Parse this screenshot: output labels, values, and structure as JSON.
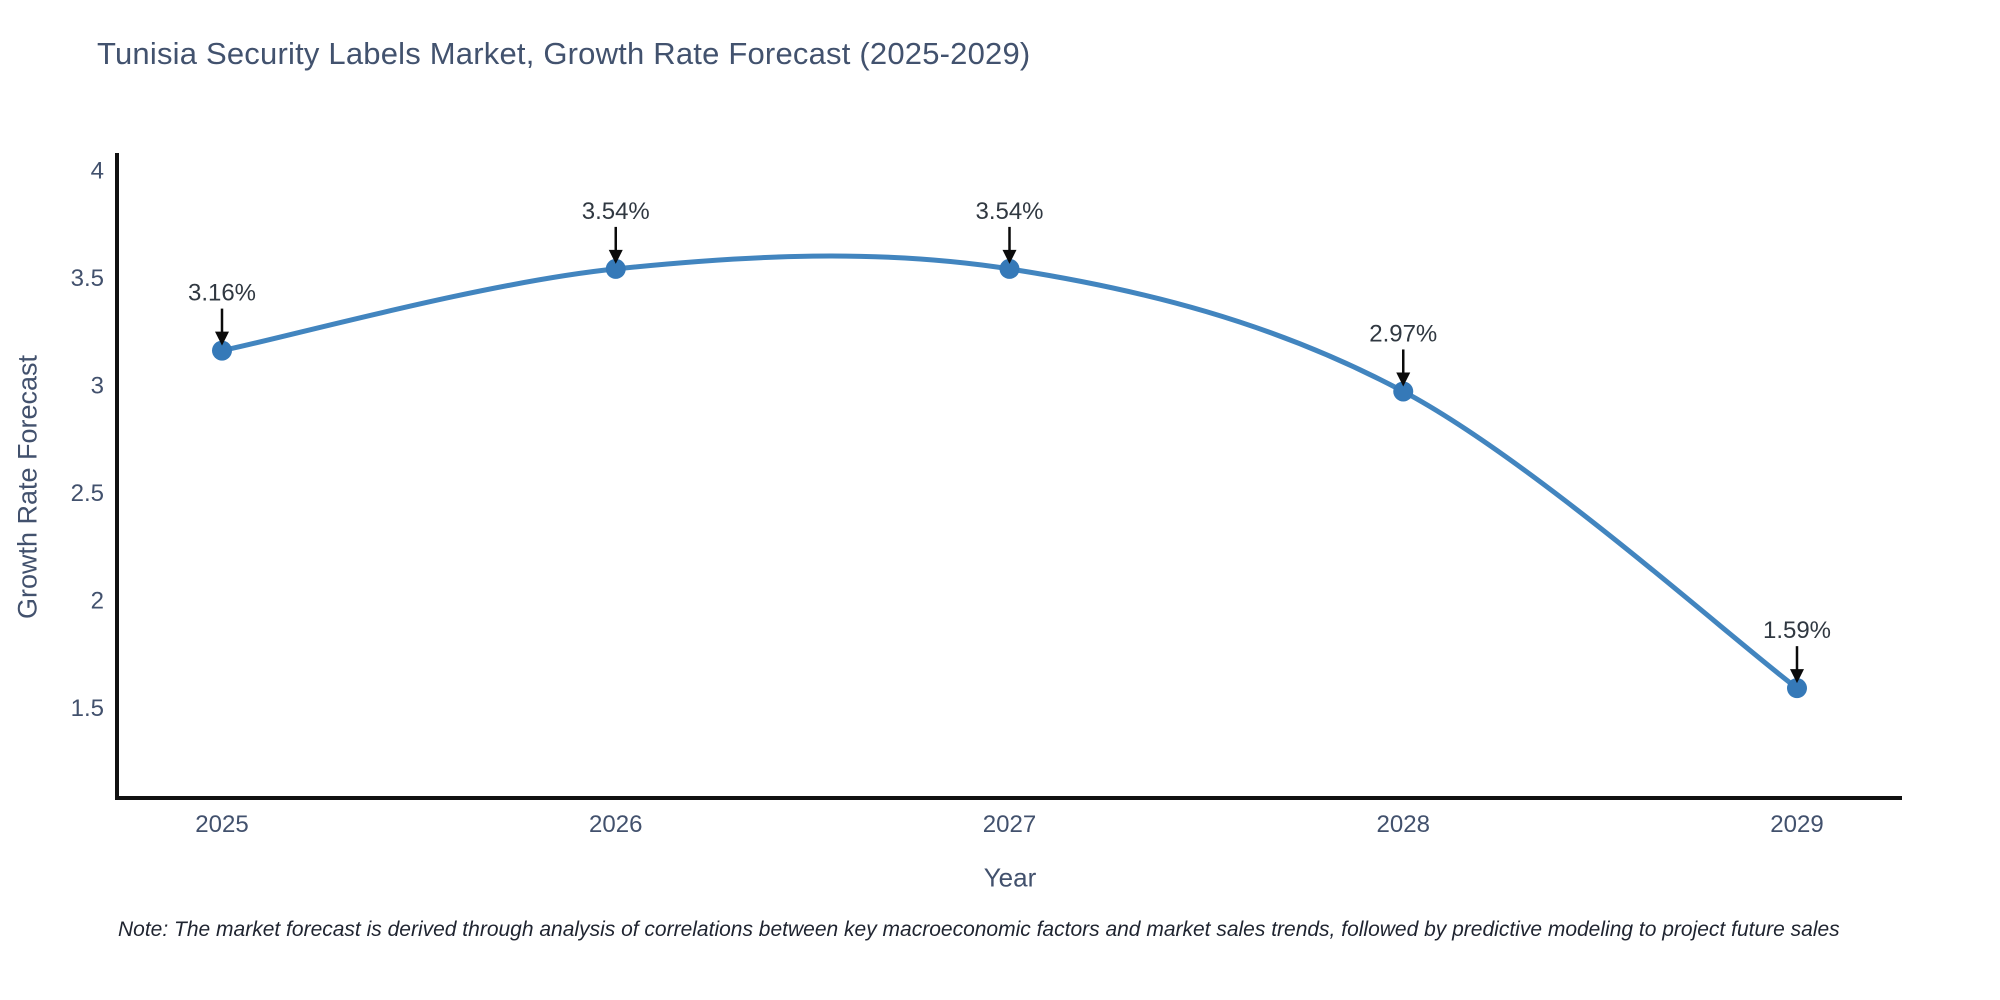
{
  "chart_data": {
    "type": "line",
    "title": "Tunisia Security Labels Market, Growth Rate Forecast (2025-2029)",
    "xlabel": "Year",
    "ylabel": "Growth Rate Forecast",
    "categories": [
      "2025",
      "2026",
      "2027",
      "2028",
      "2029"
    ],
    "series": [
      {
        "name": "Growth Rate Forecast",
        "values": [
          3.16,
          3.54,
          3.54,
          2.97,
          1.59
        ],
        "point_labels": [
          "3.16%",
          "3.54%",
          "3.54%",
          "2.97%",
          "1.59%"
        ]
      }
    ],
    "yticks": [
      4,
      3.5,
      3,
      2.5,
      2,
      1.5
    ],
    "ylim": [
      1.08,
      4.07
    ],
    "grid": false,
    "legend_position": "none",
    "line_shape": "spline",
    "colors": {
      "line": "#4285bf",
      "marker": "#3579b8",
      "axis": "#111111",
      "axis_text": "#42516d",
      "annotation_text": "#303841",
      "arrow": "#0b0b0b"
    },
    "note": "Note: The market forecast is derived through analysis of correlations between key macroeconomic factors and market sales trends, followed by predictive modeling to project future sales"
  }
}
